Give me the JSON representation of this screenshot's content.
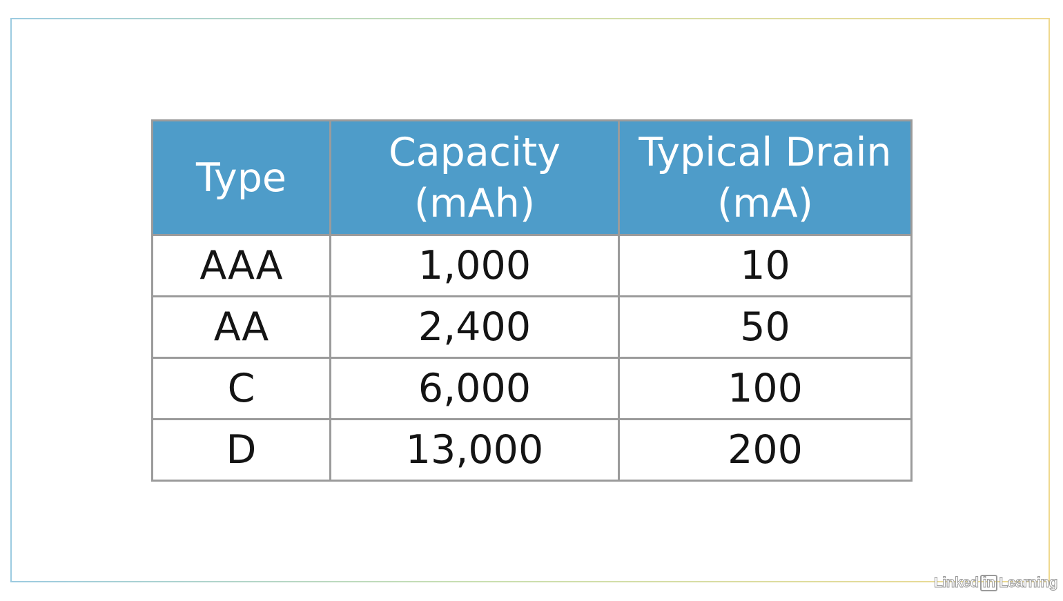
{
  "table": {
    "headers": [
      {
        "lines": [
          "Type"
        ]
      },
      {
        "lines": [
          "Capacity",
          "(mAh)"
        ]
      },
      {
        "lines": [
          "Typical Drain",
          "(mA)"
        ]
      }
    ],
    "rows": [
      [
        "AAA",
        "1,000",
        "10"
      ],
      [
        "AA",
        "2,400",
        "50"
      ],
      [
        "C",
        "6,000",
        "100"
      ],
      [
        "D",
        "13,000",
        "200"
      ]
    ]
  },
  "watermark": {
    "pre": "Linked",
    "box": "in",
    "post": "Learning"
  },
  "colors": {
    "header_bg": "#4e9cc9",
    "header_text": "#ffffff",
    "grid": "#9b9b9b",
    "cell_text": "#141414"
  }
}
